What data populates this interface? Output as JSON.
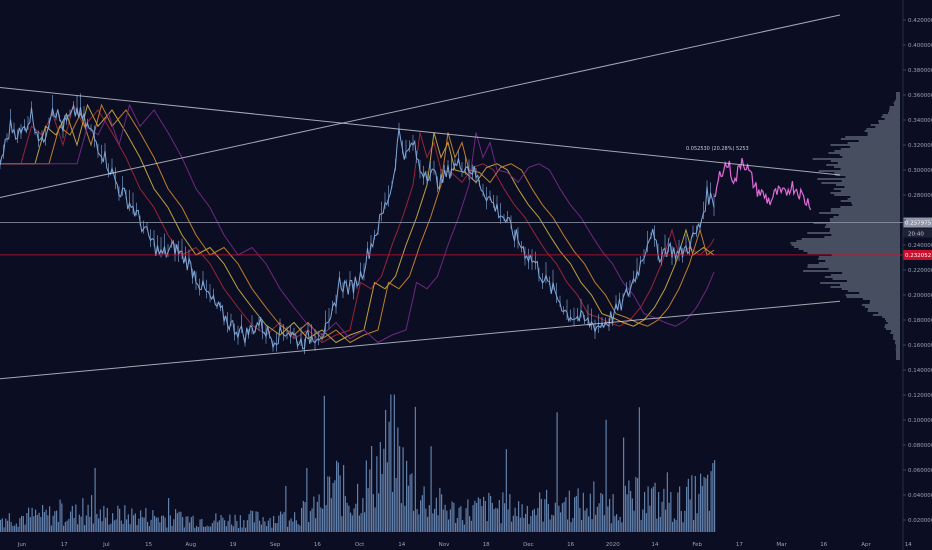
{
  "chart_data": {
    "type": "line",
    "title": "",
    "xlabel": "",
    "ylabel": "",
    "x_ticks": [
      "Jun",
      "17",
      "Jul",
      "15",
      "Aug",
      "19",
      "Sep",
      "16",
      "Oct",
      "14",
      "Nov",
      "18",
      "Dec",
      "16",
      "2020",
      "14",
      "Feb",
      "17",
      "Mar",
      "16",
      "Apr",
      "14"
    ],
    "y_ticks": [
      "0.420000",
      "0.400000",
      "0.380000",
      "0.360000",
      "0.340000",
      "0.320000",
      "0.300000",
      "0.280000",
      "0.260000",
      "0.240000",
      "0.220000",
      "0.200000",
      "0.180000",
      "0.160000",
      "0.140000",
      "0.120000",
      "0.100000",
      "0.080000",
      "0.060000",
      "0.040000",
      "0.020000"
    ],
    "ylim": [
      0.02,
      0.42
    ],
    "price_anchors": [
      [
        0,
        0.305
      ],
      [
        3,
        0.335
      ],
      [
        6,
        0.328
      ],
      [
        9,
        0.345
      ],
      [
        12,
        0.32
      ],
      [
        15,
        0.352
      ],
      [
        18,
        0.335
      ],
      [
        22,
        0.348
      ],
      [
        26,
        0.33
      ],
      [
        30,
        0.31
      ],
      [
        34,
        0.285
      ],
      [
        38,
        0.27
      ],
      [
        42,
        0.248
      ],
      [
        46,
        0.232
      ],
      [
        50,
        0.238
      ],
      [
        54,
        0.225
      ],
      [
        58,
        0.205
      ],
      [
        62,
        0.19
      ],
      [
        66,
        0.176
      ],
      [
        70,
        0.168
      ],
      [
        74,
        0.178
      ],
      [
        78,
        0.165
      ],
      [
        82,
        0.172
      ],
      [
        86,
        0.162
      ],
      [
        90,
        0.168
      ],
      [
        94,
        0.172
      ],
      [
        97,
        0.21
      ],
      [
        100,
        0.205
      ],
      [
        103,
        0.215
      ],
      [
        106,
        0.24
      ],
      [
        109,
        0.262
      ],
      [
        112,
        0.288
      ],
      [
        114,
        0.33
      ],
      [
        116,
        0.31
      ],
      [
        118,
        0.322
      ],
      [
        120,
        0.3
      ],
      [
        123,
        0.298
      ],
      [
        126,
        0.29
      ],
      [
        129,
        0.302
      ],
      [
        132,
        0.305
      ],
      [
        135,
        0.3
      ],
      [
        138,
        0.285
      ],
      [
        141,
        0.272
      ],
      [
        144,
        0.262
      ],
      [
        147,
        0.248
      ],
      [
        150,
        0.235
      ],
      [
        153,
        0.225
      ],
      [
        156,
        0.21
      ],
      [
        159,
        0.2
      ],
      [
        162,
        0.185
      ],
      [
        165,
        0.182
      ],
      [
        168,
        0.178
      ],
      [
        171,
        0.175
      ],
      [
        174,
        0.18
      ],
      [
        177,
        0.19
      ],
      [
        180,
        0.205
      ],
      [
        183,
        0.225
      ],
      [
        186,
        0.252
      ],
      [
        188,
        0.232
      ],
      [
        191,
        0.238
      ],
      [
        194,
        0.232
      ],
      [
        197,
        0.24
      ],
      [
        200,
        0.255
      ],
      [
        202,
        0.28
      ],
      [
        204,
        0.275
      ]
    ],
    "projection_anchors": [
      [
        204,
        0.275
      ],
      [
        206,
        0.3
      ],
      [
        208,
        0.305
      ],
      [
        210,
        0.29
      ],
      [
        212,
        0.31
      ],
      [
        214,
        0.298
      ],
      [
        216,
        0.285
      ],
      [
        218,
        0.28
      ],
      [
        220,
        0.275
      ],
      [
        222,
        0.282
      ],
      [
        224,
        0.28
      ],
      [
        226,
        0.288
      ],
      [
        228,
        0.284
      ],
      [
        230,
        0.276
      ],
      [
        232,
        0.273
      ]
    ],
    "volume_anchors": [
      [
        0,
        0.014
      ],
      [
        20,
        0.018
      ],
      [
        40,
        0.016
      ],
      [
        60,
        0.012
      ],
      [
        80,
        0.014
      ],
      [
        90,
        0.022
      ],
      [
        96,
        0.05
      ],
      [
        100,
        0.03
      ],
      [
        106,
        0.055
      ],
      [
        112,
        0.09
      ],
      [
        116,
        0.05
      ],
      [
        120,
        0.035
      ],
      [
        130,
        0.02
      ],
      [
        140,
        0.025
      ],
      [
        150,
        0.022
      ],
      [
        160,
        0.03
      ],
      [
        168,
        0.025
      ],
      [
        176,
        0.028
      ],
      [
        184,
        0.035
      ],
      [
        192,
        0.025
      ],
      [
        204,
        0.045
      ]
    ],
    "trend_lines": [
      {
        "from": [
          0,
          0.366
        ],
        "to": [
          240,
          0.296
        ]
      },
      {
        "from": [
          0,
          0.278
        ],
        "to": [
          240,
          0.424
        ]
      },
      {
        "from": [
          0,
          0.133
        ],
        "to": [
          240,
          0.195
        ]
      }
    ],
    "horizontal_levels": [
      {
        "value": 0.257975,
        "label": "0.257975",
        "color": "#8e96a8"
      },
      {
        "value": 0.232052,
        "label": "0.232052",
        "color": "#c8102e"
      }
    ],
    "countdown": "20:40",
    "measure_annotation": "0.052530 (20.28%) 5253",
    "colors": {
      "background": "#0b0e23",
      "price": "#7fa7d8",
      "projection": "#e06ad6",
      "ema_orange": "#d48a2a",
      "ema_yellow": "#d0b040",
      "ema_red": "#a8263a",
      "ema_purple": "#7a2a8a",
      "volume_profile": "#7a8494",
      "trend_line": "#d8dbe3",
      "axis_text": "#9aa0b0"
    }
  }
}
